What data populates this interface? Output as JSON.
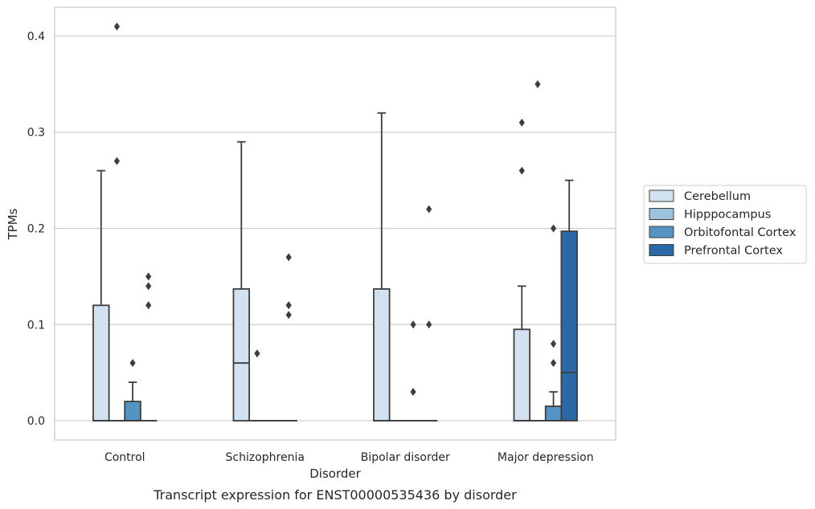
{
  "caption": "Transcript expression for ENST00000535436 by disorder",
  "chart_data": {
    "type": "box",
    "title": "",
    "xlabel": "Disorder",
    "ylabel": "TPMs",
    "ylim": [
      -0.02,
      0.43
    ],
    "yticks": [
      0.0,
      0.1,
      0.2,
      0.3,
      0.4
    ],
    "ytick_labels": [
      "0.0",
      "0.1",
      "0.2",
      "0.3",
      "0.4"
    ],
    "grid": "horizontal",
    "legend_position": "right",
    "categories": [
      "Control",
      "Schizophrenia",
      "Bipolar disorder",
      "Major depression"
    ],
    "series": [
      {
        "name": "Cerebellum",
        "color": "#d3e2f0",
        "boxes": [
          {
            "q1": 0.0,
            "median": 0.0,
            "q3": 0.12,
            "whisker_low": 0.0,
            "whisker_high": 0.26,
            "outliers": []
          },
          {
            "q1": 0.0,
            "median": 0.06,
            "q3": 0.137,
            "whisker_low": 0.0,
            "whisker_high": 0.29,
            "outliers": []
          },
          {
            "q1": 0.0,
            "median": 0.0,
            "q3": 0.137,
            "whisker_low": 0.0,
            "whisker_high": 0.32,
            "outliers": []
          },
          {
            "q1": 0.0,
            "median": 0.0,
            "q3": 0.095,
            "whisker_low": 0.0,
            "whisker_high": 0.14,
            "outliers": [
              0.26,
              0.31
            ]
          }
        ]
      },
      {
        "name": "Hipppocampus",
        "color": "#9dc3de",
        "boxes": [
          {
            "q1": 0.0,
            "median": 0.0,
            "q3": 0.0,
            "whisker_low": 0.0,
            "whisker_high": 0.0,
            "outliers": [
              0.27,
              0.41
            ]
          },
          {
            "q1": 0.0,
            "median": 0.0,
            "q3": 0.0,
            "whisker_low": 0.0,
            "whisker_high": 0.0,
            "outliers": [
              0.07
            ]
          },
          {
            "q1": 0.0,
            "median": 0.0,
            "q3": 0.0,
            "whisker_low": 0.0,
            "whisker_high": 0.0,
            "outliers": []
          },
          {
            "q1": 0.0,
            "median": 0.0,
            "q3": 0.0,
            "whisker_low": 0.0,
            "whisker_high": 0.0,
            "outliers": [
              0.35
            ]
          }
        ]
      },
      {
        "name": "Orbitofontal Cortex",
        "color": "#5394c4",
        "boxes": [
          {
            "q1": 0.0,
            "median": 0.0,
            "q3": 0.02,
            "whisker_low": 0.0,
            "whisker_high": 0.04,
            "outliers": [
              0.06
            ]
          },
          {
            "q1": 0.0,
            "median": 0.0,
            "q3": 0.0,
            "whisker_low": 0.0,
            "whisker_high": 0.0,
            "outliers": []
          },
          {
            "q1": 0.0,
            "median": 0.0,
            "q3": 0.0,
            "whisker_low": 0.0,
            "whisker_high": 0.0,
            "outliers": [
              0.03,
              0.1
            ]
          },
          {
            "q1": 0.0,
            "median": 0.0,
            "q3": 0.015,
            "whisker_low": 0.0,
            "whisker_high": 0.03,
            "outliers": [
              0.06,
              0.08,
              0.2
            ]
          }
        ]
      },
      {
        "name": "Prefrontal Cortex",
        "color": "#2a69a6",
        "boxes": [
          {
            "q1": 0.0,
            "median": 0.0,
            "q3": 0.0,
            "whisker_low": 0.0,
            "whisker_high": 0.0,
            "outliers": [
              0.12,
              0.14,
              0.15
            ]
          },
          {
            "q1": 0.0,
            "median": 0.0,
            "q3": 0.0,
            "whisker_low": 0.0,
            "whisker_high": 0.0,
            "outliers": [
              0.11,
              0.12,
              0.17
            ]
          },
          {
            "q1": 0.0,
            "median": 0.0,
            "q3": 0.0,
            "whisker_low": 0.0,
            "whisker_high": 0.0,
            "outliers": [
              0.1,
              0.22
            ]
          },
          {
            "q1": 0.0,
            "median": 0.05,
            "q3": 0.197,
            "whisker_low": 0.0,
            "whisker_high": 0.25,
            "outliers": []
          }
        ]
      }
    ]
  }
}
